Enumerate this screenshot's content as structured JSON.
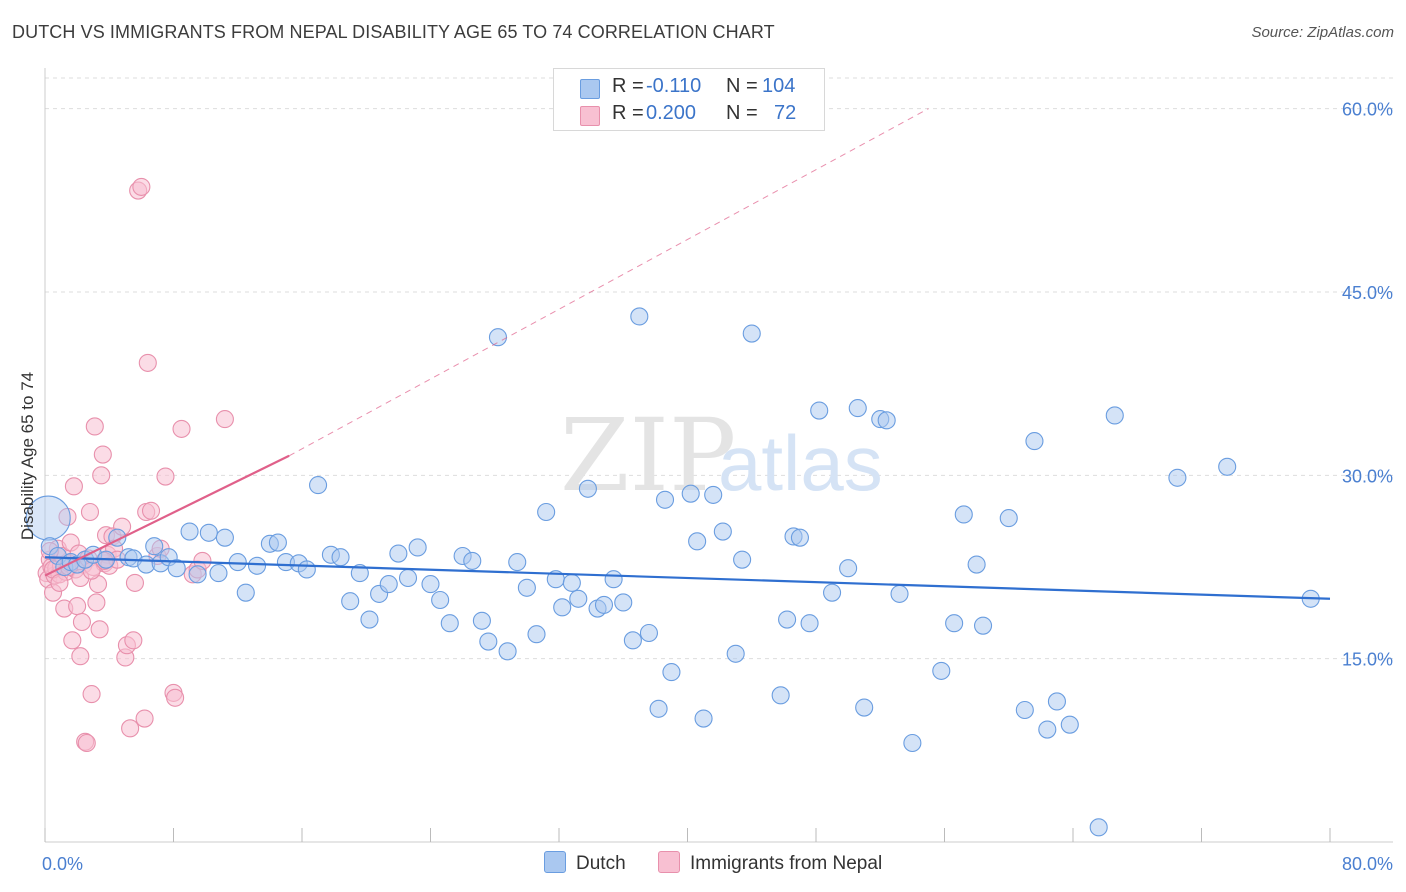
{
  "title": "DUTCH VS IMMIGRANTS FROM NEPAL DISABILITY AGE 65 TO 74 CORRELATION CHART",
  "source": "Source: ZipAtlas.com",
  "watermark": {
    "zip": "ZIP",
    "atlas": "atlas"
  },
  "legend": {
    "rows": [
      {
        "r_label": "R =",
        "r_value": "-0.110",
        "n_label": "N =",
        "n_value": "104"
      },
      {
        "r_label": "R =",
        "r_value": "0.200",
        "n_label": "N =",
        "n_value": "72"
      }
    ]
  },
  "bottom_legend": {
    "dutch": "Dutch",
    "nepal": "Immigrants from Nepal"
  },
  "colors": {
    "dutch_fill": "#aac8f0",
    "dutch_stroke": "#6a9de0",
    "dutch_line": "#2f6fd0",
    "nepal_fill": "#f8c0d2",
    "nepal_stroke": "#e890ac",
    "nepal_line": "#e0608a",
    "grid": "#dddddd",
    "axis_label": "#4a7fd0"
  },
  "chart_data": {
    "type": "scatter",
    "title": "DUTCH VS IMMIGRANTS FROM NEPAL DISABILITY AGE 65 TO 74 CORRELATION CHART",
    "xlabel": "",
    "ylabel": "Disability Age 65 to 74",
    "xlim": [
      0,
      80
    ],
    "ylim": [
      0,
      63
    ],
    "x_tick_labels": [
      "0.0%",
      "80.0%"
    ],
    "y_ticks": [
      15,
      30,
      45,
      60
    ],
    "y_tick_labels": [
      "15.0%",
      "30.0%",
      "45.0%",
      "60.0%"
    ],
    "grid": true,
    "series": [
      {
        "name": "Dutch",
        "r": -0.11,
        "n": 104,
        "trend": {
          "x0": 0,
          "y0": 23.3,
          "x1": 80,
          "y1": 19.9
        },
        "points": [
          [
            0.2,
            26.5
          ],
          [
            0.3,
            24.2
          ],
          [
            0.8,
            23.4
          ],
          [
            1.2,
            22.5
          ],
          [
            1.6,
            22.9
          ],
          [
            2.0,
            22.7
          ],
          [
            2.5,
            23.1
          ],
          [
            3.0,
            23.5
          ],
          [
            3.8,
            23.1
          ],
          [
            4.5,
            24.9
          ],
          [
            5.2,
            23.3
          ],
          [
            5.5,
            23.2
          ],
          [
            6.3,
            22.7
          ],
          [
            6.8,
            24.2
          ],
          [
            7.2,
            22.8
          ],
          [
            7.7,
            23.3
          ],
          [
            8.2,
            22.4
          ],
          [
            9.0,
            25.4
          ],
          [
            9.5,
            21.9
          ],
          [
            10.2,
            25.3
          ],
          [
            10.8,
            22.0
          ],
          [
            11.2,
            24.9
          ],
          [
            12.0,
            22.9
          ],
          [
            12.5,
            20.4
          ],
          [
            13.2,
            22.6
          ],
          [
            14.0,
            24.4
          ],
          [
            14.5,
            24.5
          ],
          [
            15.0,
            22.9
          ],
          [
            15.8,
            22.8
          ],
          [
            16.3,
            22.3
          ],
          [
            17.0,
            29.2
          ],
          [
            17.8,
            23.5
          ],
          [
            18.4,
            23.3
          ],
          [
            19.0,
            19.7
          ],
          [
            19.6,
            22.0
          ],
          [
            20.2,
            18.2
          ],
          [
            20.8,
            20.3
          ],
          [
            21.4,
            21.1
          ],
          [
            22.0,
            23.6
          ],
          [
            22.6,
            21.6
          ],
          [
            23.2,
            24.1
          ],
          [
            24.0,
            21.1
          ],
          [
            24.6,
            19.8
          ],
          [
            25.2,
            17.9
          ],
          [
            26.0,
            23.4
          ],
          [
            26.6,
            23.0
          ],
          [
            27.2,
            18.1
          ],
          [
            27.6,
            16.4
          ],
          [
            28.2,
            41.3
          ],
          [
            28.8,
            15.6
          ],
          [
            29.4,
            22.9
          ],
          [
            30.0,
            20.8
          ],
          [
            30.6,
            17.0
          ],
          [
            31.2,
            27.0
          ],
          [
            31.8,
            21.5
          ],
          [
            32.2,
            19.2
          ],
          [
            32.8,
            21.2
          ],
          [
            33.2,
            19.9
          ],
          [
            33.8,
            28.9
          ],
          [
            34.4,
            19.1
          ],
          [
            34.8,
            19.4
          ],
          [
            35.4,
            21.5
          ],
          [
            36.0,
            19.6
          ],
          [
            36.6,
            16.5
          ],
          [
            37.0,
            43.0
          ],
          [
            37.6,
            17.1
          ],
          [
            38.2,
            10.9
          ],
          [
            38.6,
            28.0
          ],
          [
            39.0,
            13.9
          ],
          [
            40.2,
            28.5
          ],
          [
            40.6,
            24.6
          ],
          [
            41.0,
            10.1
          ],
          [
            41.6,
            28.4
          ],
          [
            42.2,
            25.4
          ],
          [
            43.0,
            15.4
          ],
          [
            43.4,
            23.1
          ],
          [
            44.0,
            41.6
          ],
          [
            45.8,
            12.0
          ],
          [
            46.2,
            18.2
          ],
          [
            46.6,
            25.0
          ],
          [
            47.0,
            24.9
          ],
          [
            47.6,
            17.9
          ],
          [
            48.2,
            35.3
          ],
          [
            49.0,
            20.4
          ],
          [
            50.0,
            22.4
          ],
          [
            50.6,
            35.5
          ],
          [
            51.0,
            11.0
          ],
          [
            52.0,
            34.6
          ],
          [
            52.4,
            34.5
          ],
          [
            53.2,
            20.3
          ],
          [
            54.0,
            8.1
          ],
          [
            55.8,
            14.0
          ],
          [
            56.6,
            17.9
          ],
          [
            57.2,
            26.8
          ],
          [
            58.0,
            22.7
          ],
          [
            58.4,
            17.7
          ],
          [
            60.0,
            26.5
          ],
          [
            61.0,
            10.8
          ],
          [
            61.6,
            32.8
          ],
          [
            62.4,
            9.2
          ],
          [
            63.0,
            11.5
          ],
          [
            63.8,
            9.6
          ],
          [
            65.6,
            1.2
          ],
          [
            66.6,
            34.9
          ],
          [
            70.5,
            29.8
          ],
          [
            73.6,
            30.7
          ],
          [
            78.8,
            19.9
          ]
        ]
      },
      {
        "name": "Immigrants from Nepal",
        "r": 0.2,
        "n": 72,
        "trend": {
          "x0": 0,
          "y0": 21.8,
          "x1": 15.2,
          "y1": 31.6
        },
        "trend_extension": {
          "x0": 15.2,
          "y0": 31.6,
          "x1": 55,
          "y1": 60
        },
        "points": [
          [
            0.1,
            22.0
          ],
          [
            0.2,
            21.5
          ],
          [
            0.3,
            23.1
          ],
          [
            0.4,
            22.5
          ],
          [
            0.5,
            20.4
          ],
          [
            0.6,
            21.8
          ],
          [
            0.7,
            22.4
          ],
          [
            0.8,
            24.0
          ],
          [
            0.9,
            21.9
          ],
          [
            1.0,
            22.6
          ],
          [
            1.1,
            23.4
          ],
          [
            1.2,
            19.1
          ],
          [
            1.3,
            22.1
          ],
          [
            1.4,
            26.6
          ],
          [
            1.5,
            22.8
          ],
          [
            1.6,
            24.5
          ],
          [
            1.7,
            16.5
          ],
          [
            1.8,
            29.1
          ],
          [
            1.9,
            22.3
          ],
          [
            2.0,
            19.3
          ],
          [
            2.1,
            23.6
          ],
          [
            2.2,
            15.2
          ],
          [
            2.3,
            18.0
          ],
          [
            2.4,
            22.7
          ],
          [
            2.5,
            8.2
          ],
          [
            2.6,
            8.1
          ],
          [
            2.7,
            23.2
          ],
          [
            2.8,
            27.0
          ],
          [
            2.9,
            12.1
          ],
          [
            3.0,
            22.5
          ],
          [
            3.1,
            34.0
          ],
          [
            3.2,
            19.6
          ],
          [
            3.3,
            21.1
          ],
          [
            3.4,
            17.4
          ],
          [
            3.5,
            30.0
          ],
          [
            3.6,
            31.7
          ],
          [
            3.7,
            22.8
          ],
          [
            3.8,
            25.1
          ],
          [
            3.9,
            23.5
          ],
          [
            4.0,
            22.6
          ],
          [
            4.2,
            25.0
          ],
          [
            4.3,
            24.0
          ],
          [
            4.5,
            23.1
          ],
          [
            4.8,
            25.8
          ],
          [
            5.0,
            15.1
          ],
          [
            5.1,
            16.1
          ],
          [
            5.3,
            9.3
          ],
          [
            5.5,
            16.5
          ],
          [
            5.6,
            21.2
          ],
          [
            5.8,
            53.3
          ],
          [
            6.0,
            53.6
          ],
          [
            6.2,
            10.1
          ],
          [
            6.3,
            27.0
          ],
          [
            6.4,
            39.2
          ],
          [
            6.6,
            27.1
          ],
          [
            7.0,
            23.4
          ],
          [
            7.2,
            24.0
          ],
          [
            7.5,
            29.9
          ],
          [
            8.0,
            12.2
          ],
          [
            8.1,
            11.8
          ],
          [
            8.5,
            33.8
          ],
          [
            9.2,
            21.9
          ],
          [
            9.5,
            22.3
          ],
          [
            9.8,
            23.0
          ],
          [
            11.2,
            34.6
          ],
          [
            0.3,
            23.8
          ],
          [
            0.5,
            22.3
          ],
          [
            0.9,
            21.2
          ],
          [
            1.5,
            22.5
          ],
          [
            2.2,
            21.6
          ],
          [
            2.9,
            22.2
          ],
          [
            3.7,
            23.0
          ]
        ]
      }
    ]
  }
}
